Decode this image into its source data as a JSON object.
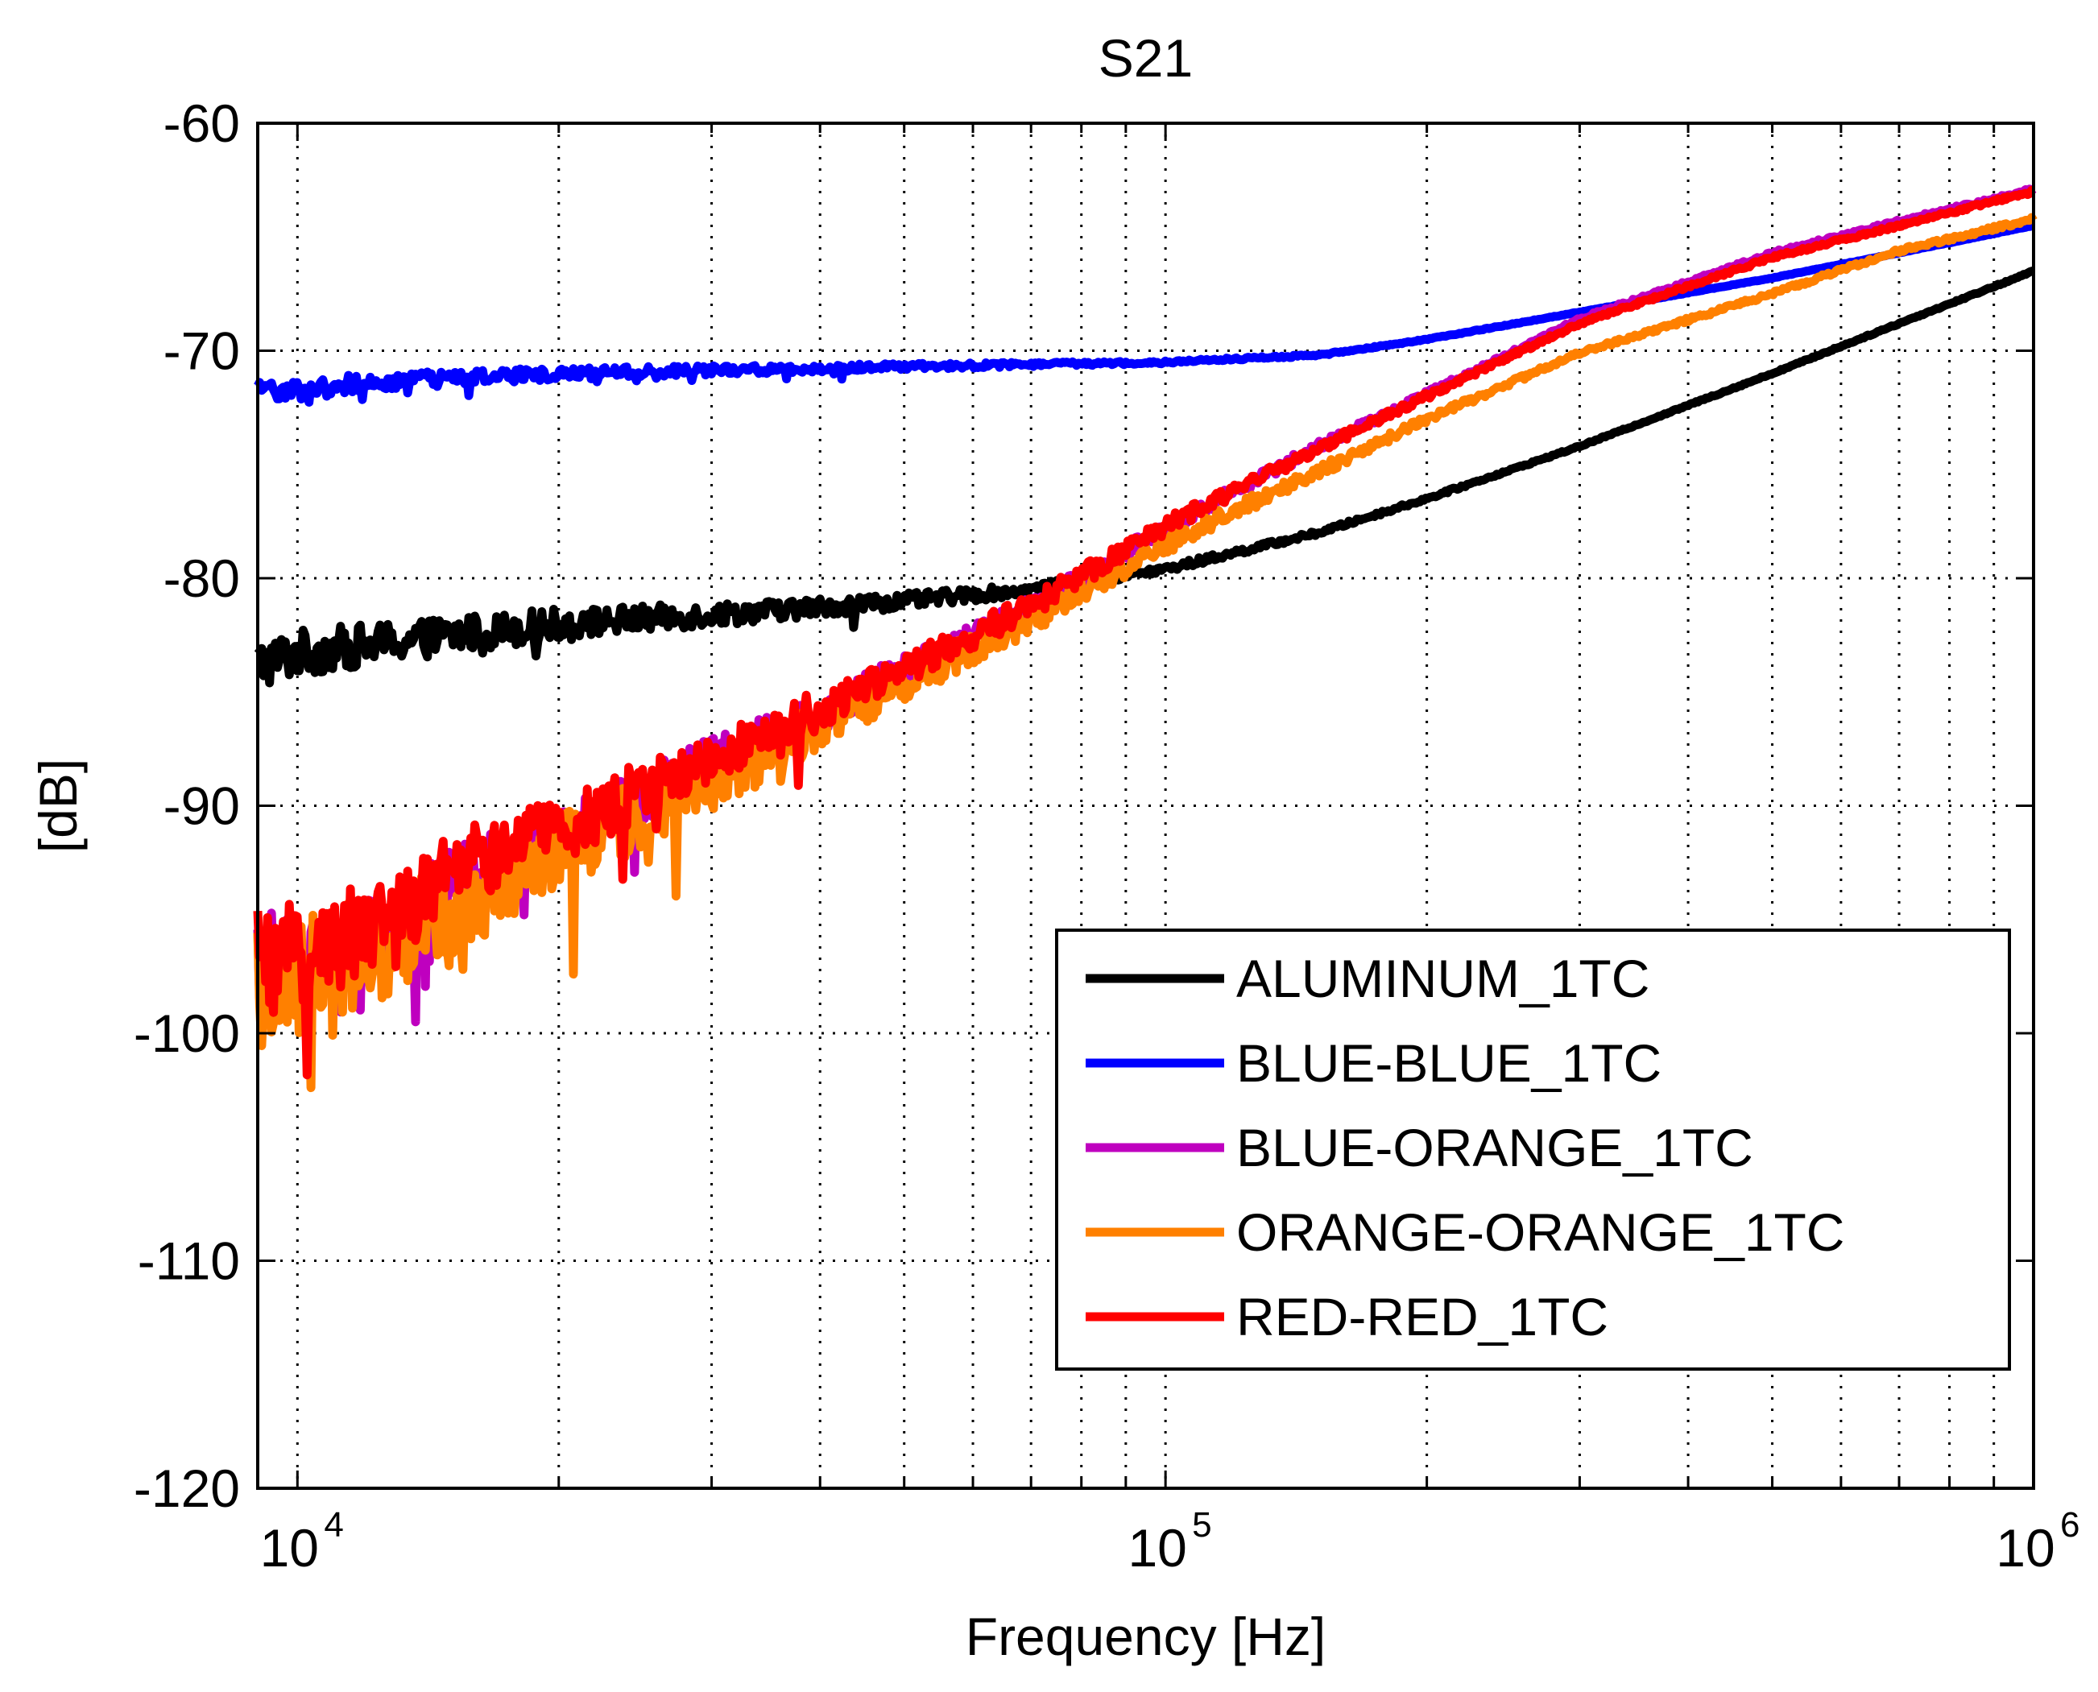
{
  "chart_data": {
    "type": "line",
    "title": "S21",
    "xlabel": "Frequency [Hz]",
    "ylabel": "[dB]",
    "xscale": "log",
    "xlim": [
      9000,
      1000000
    ],
    "ylim": [
      -120,
      -60
    ],
    "grid": true,
    "legend_position": "bottom-right",
    "y_ticks": [
      -60,
      -70,
      -80,
      -90,
      -100,
      -110,
      -120
    ],
    "y_tick_labels": [
      "-60",
      "-70",
      "-80",
      "-90",
      "-100",
      "-110",
      "-120"
    ],
    "x_ticks": [
      {
        "base": "10",
        "exp": "4"
      },
      {
        "base": "10",
        "exp": "5"
      },
      {
        "base": "10",
        "exp": "6"
      }
    ],
    "series": [
      {
        "name": "ALUMINUM_1TC",
        "color": "#000000",
        "noise": 0.5,
        "points": [
          [
            9000,
            -83.8
          ],
          [
            10000,
            -83.3
          ],
          [
            15000,
            -82.5
          ],
          [
            20000,
            -82.0
          ],
          [
            30000,
            -81.6
          ],
          [
            50000,
            -81.0
          ],
          [
            70000,
            -80.5
          ],
          [
            100000,
            -79.6
          ],
          [
            150000,
            -78.0
          ],
          [
            200000,
            -76.5
          ],
          [
            300000,
            -74.2
          ],
          [
            500000,
            -71.0
          ],
          [
            700000,
            -68.8
          ],
          [
            1000000,
            -66.5
          ]
        ]
      },
      {
        "name": "BLUE-BLUE_1TC",
        "color": "#0000ff",
        "noise": 0.2,
        "points": [
          [
            9000,
            -71.8
          ],
          [
            12000,
            -71.4
          ],
          [
            20000,
            -71.0
          ],
          [
            50000,
            -70.7
          ],
          [
            100000,
            -70.5
          ],
          [
            150000,
            -70.2
          ],
          [
            200000,
            -69.5
          ],
          [
            300000,
            -68.3
          ],
          [
            500000,
            -66.8
          ],
          [
            700000,
            -65.7
          ],
          [
            1000000,
            -64.5
          ]
        ]
      },
      {
        "name": "BLUE-ORANGE_1TC",
        "color": "#bf00bf",
        "noise": 1.0,
        "points": [
          [
            9000,
            -97.0
          ],
          [
            12000,
            -96.0
          ],
          [
            15000,
            -93.5
          ],
          [
            20000,
            -91.5
          ],
          [
            30000,
            -88.0
          ],
          [
            40000,
            -86.0
          ],
          [
            50000,
            -84.0
          ],
          [
            70000,
            -81.3
          ],
          [
            100000,
            -77.8
          ],
          [
            150000,
            -74.2
          ],
          [
            200000,
            -71.9
          ],
          [
            300000,
            -68.6
          ],
          [
            500000,
            -65.7
          ],
          [
            700000,
            -64.3
          ],
          [
            1000000,
            -62.9
          ]
        ]
      },
      {
        "name": "ORANGE-ORANGE_1TC",
        "color": "#ff8000",
        "noise": 1.3,
        "points": [
          [
            9000,
            -98.0
          ],
          [
            12000,
            -96.5
          ],
          [
            15000,
            -94.5
          ],
          [
            20000,
            -92.0
          ],
          [
            30000,
            -89.0
          ],
          [
            40000,
            -86.5
          ],
          [
            50000,
            -84.5
          ],
          [
            70000,
            -81.8
          ],
          [
            100000,
            -78.5
          ],
          [
            150000,
            -75.3
          ],
          [
            200000,
            -73.0
          ],
          [
            300000,
            -70.1
          ],
          [
            500000,
            -67.5
          ],
          [
            700000,
            -65.6
          ],
          [
            1000000,
            -64.2
          ]
        ]
      },
      {
        "name": "RED-RED_1TC",
        "color": "#ff0000",
        "noise": 1.1,
        "points": [
          [
            9000,
            -97.0
          ],
          [
            12000,
            -95.5
          ],
          [
            15000,
            -93.0
          ],
          [
            20000,
            -91.0
          ],
          [
            30000,
            -87.8
          ],
          [
            40000,
            -85.8
          ],
          [
            50000,
            -84.0
          ],
          [
            70000,
            -81.2
          ],
          [
            100000,
            -77.7
          ],
          [
            150000,
            -74.3
          ],
          [
            200000,
            -72.0
          ],
          [
            300000,
            -68.8
          ],
          [
            500000,
            -65.9
          ],
          [
            700000,
            -64.5
          ],
          [
            1000000,
            -63.0
          ]
        ]
      }
    ]
  }
}
